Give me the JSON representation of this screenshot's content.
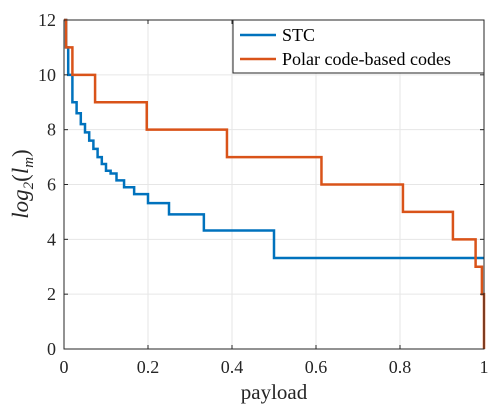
{
  "chart_data": {
    "type": "line",
    "xlabel": "payload",
    "ylabel": {
      "main": "log",
      "base": "2",
      "open": "(",
      "var": "l",
      "sub": "m",
      "close": ")"
    },
    "xlim": [
      0,
      1
    ],
    "ylim": [
      0,
      12
    ],
    "xticks": [
      0,
      0.2,
      0.4,
      0.6,
      0.8,
      1
    ],
    "xtick_labels": [
      "0",
      "0.2",
      "0.4",
      "0.6",
      "0.8",
      "1"
    ],
    "yticks": [
      0,
      2,
      4,
      6,
      8,
      10,
      12
    ],
    "ytick_labels": [
      "0",
      "2",
      "4",
      "6",
      "8",
      "10",
      "12"
    ],
    "grid": true,
    "legend_position": "top-right",
    "series": [
      {
        "name": "STC",
        "color": "#0072BD",
        "style": "step",
        "points": [
          [
            0,
            12
          ],
          [
            0.005,
            11
          ],
          [
            0.01,
            10
          ],
          [
            0.02,
            9
          ],
          [
            0.03,
            8.6
          ],
          [
            0.04,
            8.2
          ],
          [
            0.05,
            7.9
          ],
          [
            0.06,
            7.6
          ],
          [
            0.07,
            7.3
          ],
          [
            0.08,
            7.0
          ],
          [
            0.09,
            6.75
          ],
          [
            0.1,
            6.5
          ],
          [
            0.111,
            6.4
          ],
          [
            0.125,
            6.15
          ],
          [
            0.143,
            5.9
          ],
          [
            0.167,
            5.65
          ],
          [
            0.2,
            5.32
          ],
          [
            0.25,
            4.91
          ],
          [
            0.333,
            4.32
          ],
          [
            0.5,
            3.32
          ],
          [
            1,
            3.32
          ]
        ]
      },
      {
        "name": "Polar code-based codes",
        "color": "#D95319",
        "style": "step",
        "points": [
          [
            0,
            12
          ],
          [
            0.005,
            11
          ],
          [
            0.02,
            10
          ],
          [
            0.074,
            9
          ],
          [
            0.197,
            8
          ],
          [
            0.388,
            7
          ],
          [
            0.613,
            6
          ],
          [
            0.807,
            5
          ],
          [
            0.926,
            4
          ],
          [
            0.98,
            3
          ],
          [
            0.995,
            2
          ],
          [
            1.0,
            1
          ],
          [
            1.0,
            0
          ]
        ]
      }
    ]
  }
}
